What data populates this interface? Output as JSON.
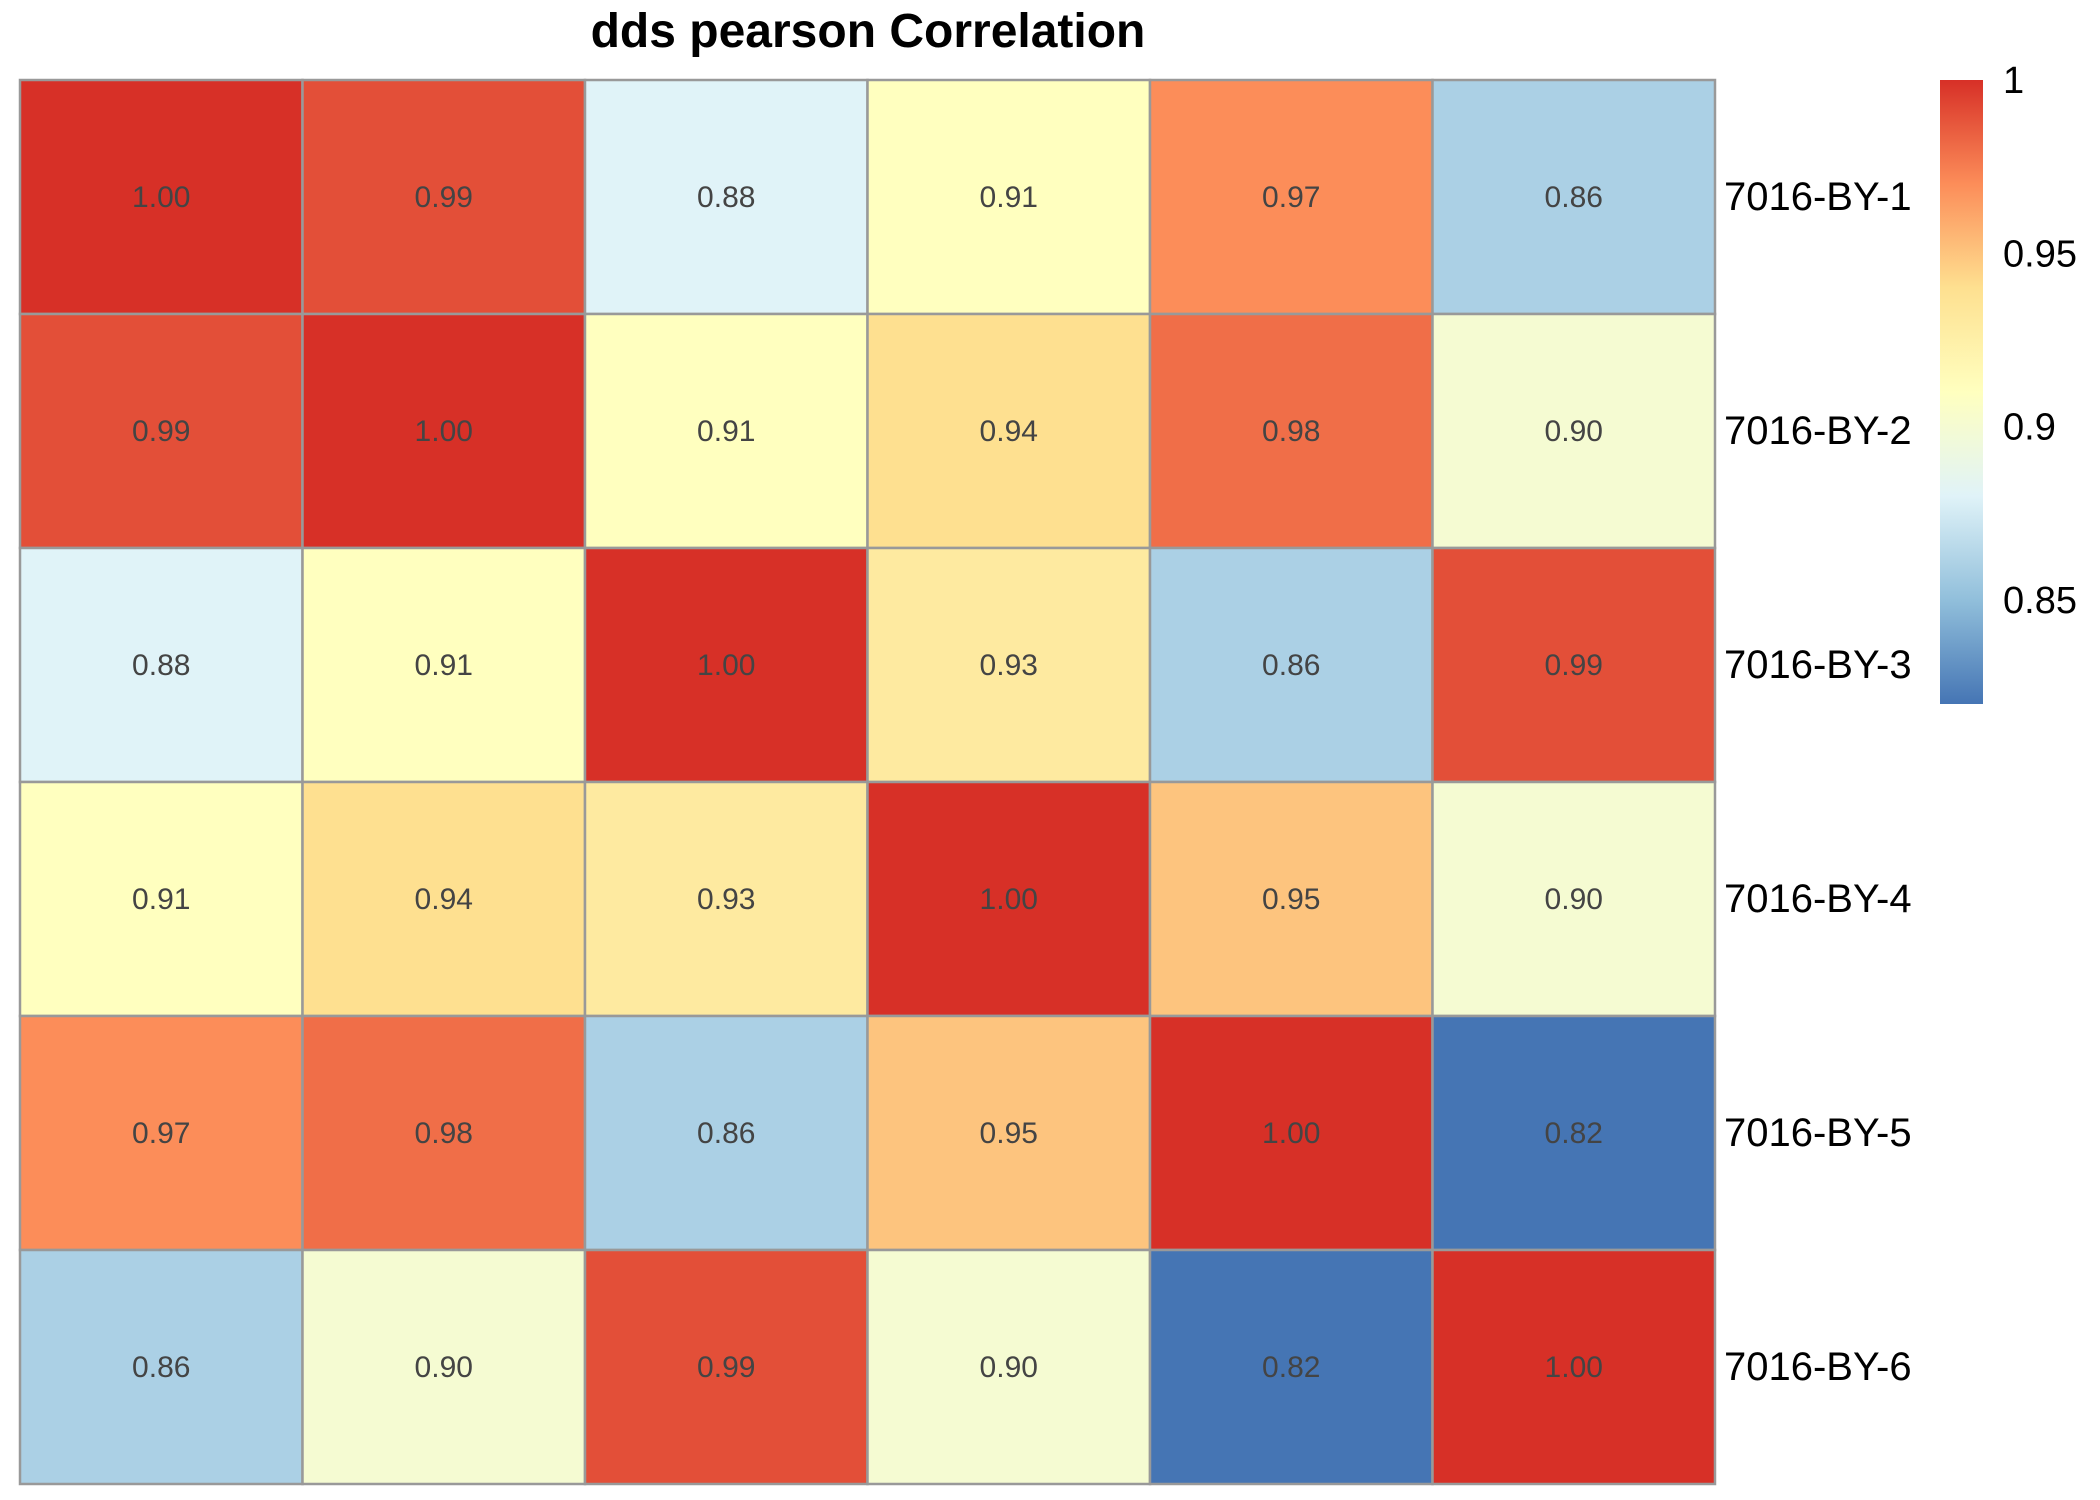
{
  "chart_data": {
    "type": "heatmap",
    "title": "dds pearson Correlation",
    "rows": [
      "7016-BY-1",
      "7016-BY-2",
      "7016-BY-3",
      "7016-BY-4",
      "7016-BY-5",
      "7016-BY-6"
    ],
    "values": [
      [
        1.0,
        0.99,
        0.88,
        0.91,
        0.97,
        0.86
      ],
      [
        0.99,
        1.0,
        0.91,
        0.94,
        0.98,
        0.9
      ],
      [
        0.88,
        0.91,
        1.0,
        0.93,
        0.86,
        0.99
      ],
      [
        0.91,
        0.94,
        0.93,
        1.0,
        0.95,
        0.9
      ],
      [
        0.97,
        0.98,
        0.86,
        0.95,
        1.0,
        0.82
      ],
      [
        0.86,
        0.9,
        0.99,
        0.9,
        0.82,
        1.0
      ]
    ],
    "cell_labels": [
      [
        "1.00",
        "0.99",
        "0.88",
        "0.91",
        "0.97",
        "0.86"
      ],
      [
        "0.99",
        "1.00",
        "0.91",
        "0.94",
        "0.98",
        "0.90"
      ],
      [
        "0.88",
        "0.91",
        "1.00",
        "0.93",
        "0.86",
        "0.99"
      ],
      [
        "0.91",
        "0.94",
        "0.93",
        "1.00",
        "0.95",
        "0.90"
      ],
      [
        "0.97",
        "0.98",
        "0.86",
        "0.95",
        "1.00",
        "0.82"
      ],
      [
        "0.86",
        "0.90",
        "0.99",
        "0.90",
        "0.82",
        "1.00"
      ]
    ],
    "legend": {
      "position": "right",
      "range": [
        0.82,
        1.0
      ],
      "ticks": [
        1,
        0.95,
        0.9,
        0.85
      ],
      "tick_labels": [
        "1",
        "0.95",
        "0.9",
        "0.85"
      ]
    },
    "colors": {
      "stops": [
        "#4575B4",
        "#91BFDB",
        "#E0F3F8",
        "#FFFFBF",
        "#FEE090",
        "#FC8D59",
        "#D73027"
      ],
      "cell_border": "#999999",
      "cell_text": "#444444"
    }
  }
}
